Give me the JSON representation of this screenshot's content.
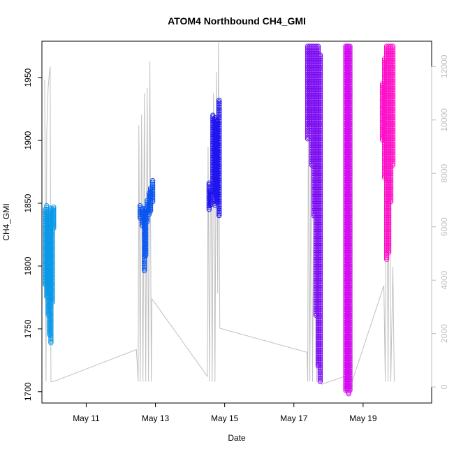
{
  "chart_data": {
    "type": "scatter",
    "title": "ATOM4 Northbound CH4_GMI",
    "xlabel": "Date",
    "ylabel": "CH4_GMI",
    "x_ticks": [
      "May 11",
      "May 13",
      "May 15",
      "May 17",
      "May 19"
    ],
    "x_tick_days": [
      11,
      13,
      15,
      17,
      19
    ],
    "xlim": [
      9.72,
      20.98
    ],
    "ylim": [
      1691,
      1979
    ],
    "y_ticks": [
      1700,
      1750,
      1800,
      1850,
      1900,
      1950
    ],
    "right_axis": {
      "ylim": [
        -600,
        12950
      ],
      "ticks": [
        0,
        2000,
        4000,
        6000,
        8000,
        10000,
        12000
      ],
      "series_color": "#c0c0c0"
    },
    "grid": false,
    "series": [
      {
        "color": "#0a98e8",
        "bands": [
          [
            9.82,
            1785,
            1845
          ],
          [
            9.86,
            1775,
            1848
          ],
          [
            9.9,
            1760,
            1842
          ],
          [
            9.94,
            1745,
            1840
          ],
          [
            9.98,
            1738,
            1846
          ],
          [
            10.02,
            1770,
            1845
          ],
          [
            10.06,
            1830,
            1847
          ]
        ]
      },
      {
        "color": "#0a55ee",
        "bands": [
          [
            12.56,
            1838,
            1848
          ],
          [
            12.62,
            1832,
            1846
          ],
          [
            12.68,
            1795,
            1845
          ],
          [
            12.72,
            1808,
            1846
          ],
          [
            12.76,
            1835,
            1852
          ],
          [
            12.82,
            1840,
            1858
          ],
          [
            12.86,
            1843,
            1862
          ],
          [
            12.92,
            1850,
            1868
          ]
        ]
      },
      {
        "color": "#1e12ee",
        "bands": [
          [
            14.55,
            1845,
            1866
          ],
          [
            14.6,
            1848,
            1860
          ],
          [
            14.66,
            1855,
            1920
          ],
          [
            14.72,
            1848,
            1918
          ],
          [
            14.78,
            1850,
            1916
          ],
          [
            14.84,
            1840,
            1932
          ]
        ]
      },
      {
        "color": "#7a08f2",
        "bands": [
          [
            17.4,
            1900,
            1975
          ],
          [
            17.46,
            1910,
            1975
          ],
          [
            17.52,
            1880,
            1975
          ],
          [
            17.58,
            1840,
            1975
          ],
          [
            17.64,
            1760,
            1975
          ],
          [
            17.7,
            1720,
            1975
          ],
          [
            17.76,
            1708,
            1968
          ]
        ]
      },
      {
        "color": "#d30cee",
        "bands": [
          [
            18.5,
            1700,
            1975
          ],
          [
            18.54,
            1700,
            1975
          ],
          [
            18.58,
            1698,
            1975
          ],
          [
            18.62,
            1700,
            1975
          ]
        ]
      },
      {
        "color": "#ff0ec8",
        "bands": [
          [
            19.56,
            1900,
            1945
          ],
          [
            19.62,
            1870,
            1965
          ],
          [
            19.68,
            1805,
            1975
          ],
          [
            19.74,
            1810,
            1975
          ],
          [
            19.8,
            1850,
            1975
          ],
          [
            19.86,
            1880,
            1975
          ]
        ]
      }
    ],
    "altitude_trace": [
      [
        9.8,
        11500
      ],
      [
        9.84,
        200
      ],
      [
        9.86,
        9500
      ],
      [
        9.9,
        11200
      ],
      [
        9.94,
        11800
      ],
      [
        9.96,
        12000
      ],
      [
        9.98,
        200
      ],
      [
        10.05,
        200
      ],
      [
        12.45,
        1400
      ],
      [
        12.5,
        200
      ],
      [
        12.52,
        9800
      ],
      [
        12.56,
        200
      ],
      [
        12.6,
        10200
      ],
      [
        12.64,
        200
      ],
      [
        12.68,
        11000
      ],
      [
        12.72,
        200
      ],
      [
        12.76,
        11200
      ],
      [
        12.8,
        200
      ],
      [
        12.84,
        12200
      ],
      [
        12.88,
        200
      ],
      [
        12.9,
        3300
      ],
      [
        14.5,
        400
      ],
      [
        14.52,
        9000
      ],
      [
        14.56,
        200
      ],
      [
        14.6,
        9600
      ],
      [
        14.64,
        200
      ],
      [
        14.68,
        11000
      ],
      [
        14.72,
        200
      ],
      [
        14.76,
        11800
      ],
      [
        14.8,
        3500
      ],
      [
        14.82,
        12900
      ],
      [
        14.86,
        2200
      ],
      [
        17.38,
        1300
      ],
      [
        17.4,
        200
      ],
      [
        17.42,
        11500
      ],
      [
        17.46,
        200
      ],
      [
        17.5,
        10500
      ],
      [
        17.54,
        200
      ],
      [
        17.6,
        11800
      ],
      [
        17.66,
        200
      ],
      [
        17.72,
        11000
      ],
      [
        17.78,
        200
      ],
      [
        17.8,
        100
      ],
      [
        18.48,
        400
      ],
      [
        18.52,
        200
      ],
      [
        18.56,
        800
      ],
      [
        18.6,
        200
      ],
      [
        18.68,
        200
      ],
      [
        19.6,
        3800
      ],
      [
        19.64,
        200
      ],
      [
        19.68,
        12000
      ],
      [
        19.72,
        200
      ],
      [
        19.76,
        11900
      ],
      [
        19.8,
        200
      ],
      [
        19.86,
        4500
      ],
      [
        19.9,
        200
      ]
    ]
  }
}
